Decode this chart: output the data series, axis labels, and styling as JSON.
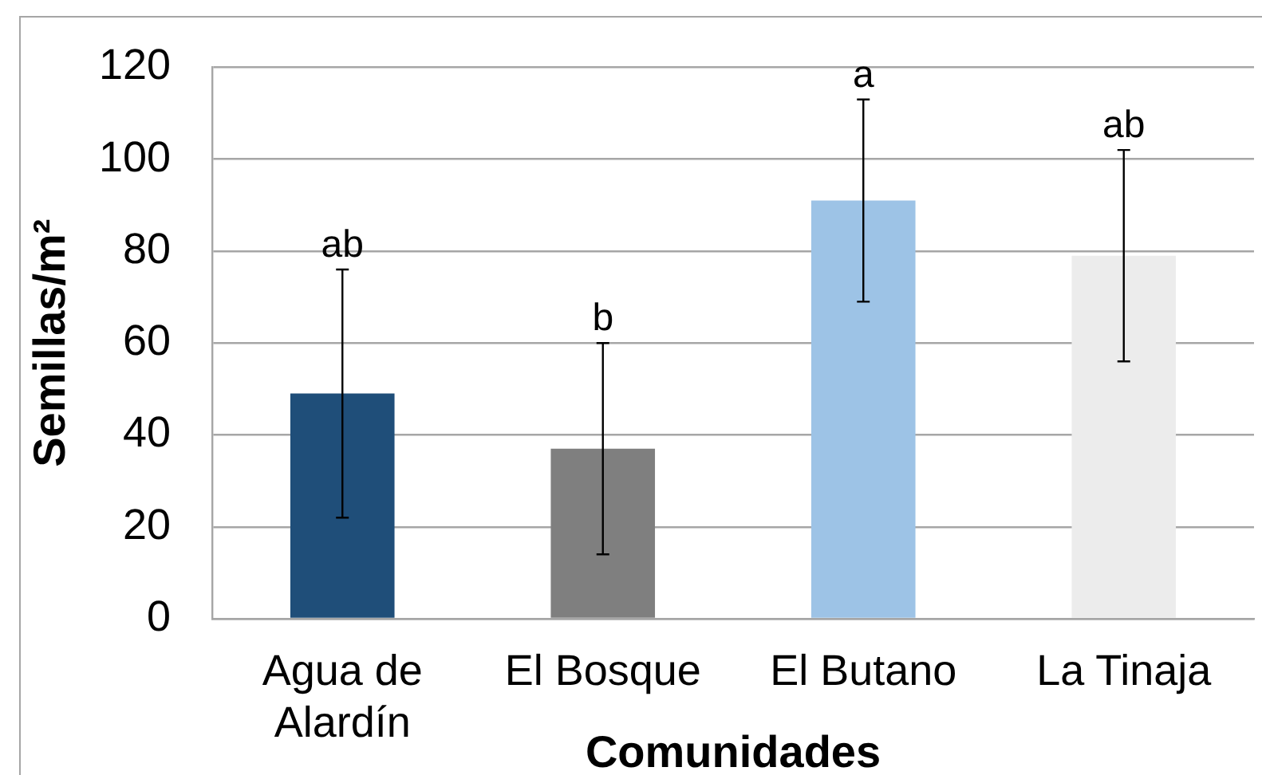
{
  "chart_data": {
    "type": "bar",
    "xlabel": "Comunidades",
    "ylabel": "Semillas/m²",
    "categories": [
      "Agua de Alardín",
      "El Bosque",
      "El Butano",
      "La Tinaja"
    ],
    "values": [
      49,
      37,
      91,
      79
    ],
    "colors": [
      "#1f4e79",
      "#7f7f7f",
      "#9dc3e6",
      "#ececec"
    ],
    "errors": [
      27,
      23,
      22,
      23
    ],
    "ylim": [
      0,
      120
    ],
    "yticks": [
      0,
      20,
      40,
      60,
      80,
      100,
      120
    ],
    "grid": "y",
    "legend": false,
    "annotations": [
      {
        "text": "ab",
        "x": "Agua de Alardín",
        "y": 76
      },
      {
        "text": "b",
        "x": "El Bosque",
        "y": 60
      },
      {
        "text": "a",
        "x": "El Butano",
        "y": 113
      },
      {
        "text": "ab",
        "x": "La Tinaja",
        "y": 102
      }
    ]
  }
}
